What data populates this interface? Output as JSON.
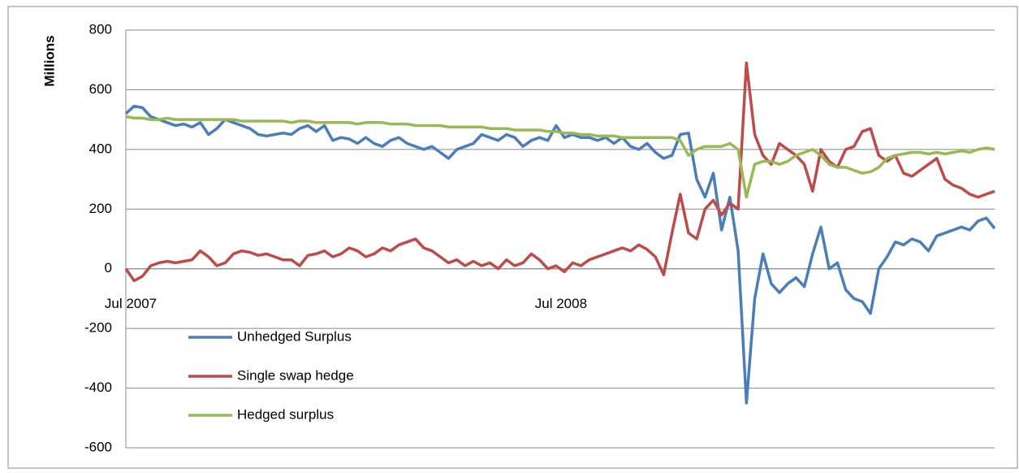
{
  "chart_data": {
    "type": "line",
    "y_axis_label": "Millions",
    "categories": [
      "Jul 2007",
      null,
      null,
      null,
      null,
      null,
      null,
      null,
      null,
      null,
      null,
      null,
      null,
      null,
      null,
      null,
      null,
      null,
      null,
      null,
      null,
      null,
      null,
      null,
      null,
      null,
      null,
      null,
      null,
      null,
      null,
      null,
      null,
      null,
      null,
      null,
      null,
      null,
      null,
      null,
      null,
      null,
      null,
      null,
      null,
      null,
      null,
      null,
      null,
      null,
      null,
      null,
      "Jul 2008",
      null,
      null,
      null,
      null,
      null,
      null,
      null,
      null,
      null,
      null,
      null,
      null,
      null,
      null,
      null,
      null,
      null,
      null,
      null,
      null,
      null,
      null,
      null,
      null,
      null,
      null,
      null,
      null,
      null,
      null,
      null,
      null,
      null,
      null,
      null,
      null,
      null,
      null,
      null,
      null,
      null,
      null,
      null,
      null,
      null,
      null,
      null,
      null,
      null,
      null,
      null,
      null,
      null
    ],
    "series": [
      {
        "name": "Unhedged Surplus",
        "color": "#4a7ebb",
        "values": [
          520,
          545,
          540,
          510,
          500,
          490,
          480,
          485,
          475,
          490,
          450,
          470,
          500,
          490,
          480,
          470,
          450,
          445,
          450,
          455,
          450,
          470,
          480,
          460,
          480,
          430,
          440,
          435,
          420,
          440,
          420,
          410,
          430,
          440,
          420,
          410,
          400,
          410,
          390,
          370,
          400,
          410,
          420,
          450,
          440,
          430,
          450,
          440,
          410,
          430,
          440,
          430,
          480,
          440,
          450,
          440,
          440,
          430,
          440,
          420,
          440,
          410,
          400,
          420,
          390,
          370,
          380,
          450,
          455,
          300,
          240,
          320,
          130,
          240,
          60,
          -450,
          -100,
          50,
          -50,
          -80,
          -50,
          -30,
          -60,
          50,
          140,
          0,
          20,
          -70,
          -100,
          -110,
          -150,
          0,
          40,
          90,
          80,
          100,
          90,
          60,
          110,
          120,
          130,
          140,
          130,
          160,
          170,
          135
        ]
      },
      {
        "name": "Single swap hedge",
        "color": "#be4b48",
        "values": [
          0,
          -40,
          -25,
          10,
          20,
          25,
          20,
          25,
          30,
          60,
          40,
          10,
          20,
          50,
          60,
          55,
          45,
          50,
          40,
          30,
          30,
          10,
          45,
          50,
          60,
          40,
          50,
          70,
          60,
          40,
          50,
          70,
          60,
          80,
          90,
          100,
          70,
          60,
          40,
          20,
          30,
          10,
          25,
          10,
          20,
          0,
          30,
          10,
          20,
          50,
          30,
          0,
          10,
          -10,
          20,
          10,
          30,
          40,
          50,
          60,
          70,
          60,
          80,
          65,
          40,
          -20,
          120,
          250,
          120,
          100,
          200,
          230,
          180,
          220,
          200,
          690,
          450,
          380,
          350,
          420,
          400,
          380,
          350,
          260,
          400,
          360,
          340,
          400,
          410,
          460,
          470,
          380,
          360,
          380,
          320,
          310,
          330,
          350,
          370,
          300,
          280,
          270,
          250,
          240,
          250,
          260
        ]
      },
      {
        "name": "Hedged surplus",
        "color": "#98b954",
        "values": [
          510,
          505,
          505,
          500,
          500,
          505,
          500,
          500,
          500,
          500,
          500,
          500,
          500,
          500,
          495,
          495,
          495,
          495,
          495,
          495,
          490,
          495,
          495,
          490,
          490,
          490,
          490,
          490,
          485,
          490,
          490,
          490,
          485,
          485,
          485,
          480,
          480,
          480,
          480,
          475,
          475,
          475,
          475,
          475,
          470,
          470,
          470,
          465,
          465,
          465,
          465,
          460,
          460,
          455,
          455,
          450,
          450,
          445,
          445,
          445,
          440,
          440,
          440,
          440,
          440,
          440,
          440,
          430,
          380,
          400,
          410,
          410,
          410,
          420,
          400,
          240,
          350,
          360,
          360,
          350,
          360,
          380,
          390,
          400,
          380,
          350,
          340,
          340,
          330,
          320,
          325,
          340,
          370,
          380,
          385,
          390,
          390,
          385,
          390,
          385,
          390,
          395,
          390,
          400,
          405,
          400
        ]
      }
    ],
    "ylim": [
      -600,
      800
    ],
    "yticks": [
      -600,
      -400,
      -200,
      0,
      200,
      400,
      600,
      800
    ],
    "grid": true,
    "legend": "lower left"
  }
}
